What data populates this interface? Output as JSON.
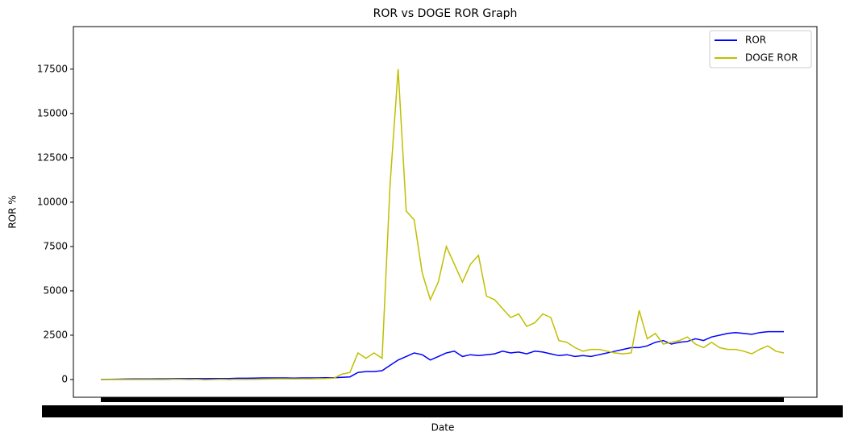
{
  "chart_data": {
    "type": "line",
    "title": "ROR vs DOGE ROR Graph",
    "x_label": "Date",
    "y_label": "ROR %",
    "categories": [
      null,
      null,
      null,
      null,
      null,
      null,
      null,
      null,
      null,
      null,
      null,
      null,
      null,
      null,
      null,
      null,
      null,
      null,
      null,
      null,
      null,
      null,
      null,
      null,
      null,
      null,
      null,
      null,
      null,
      null,
      null,
      null,
      null,
      null,
      null,
      null,
      null,
      null,
      null,
      null,
      null,
      null,
      null,
      null,
      null,
      null,
      null,
      null,
      null,
      null,
      null,
      null,
      null,
      null,
      null,
      null,
      null,
      null,
      null,
      null,
      null,
      null,
      null,
      null,
      null,
      null,
      null,
      null,
      null,
      null,
      null,
      null,
      null,
      null,
      null,
      null,
      null,
      null,
      null,
      null,
      null,
      null,
      null,
      null,
      null,
      null
    ],
    "series": [
      {
        "name": "ROR",
        "color": "#0000ff",
        "values": [
          0,
          10,
          20,
          25,
          30,
          30,
          35,
          40,
          40,
          45,
          50,
          50,
          55,
          50,
          60,
          60,
          60,
          70,
          70,
          80,
          90,
          90,
          90,
          90,
          80,
          90,
          90,
          90,
          100,
          100,
          120,
          150,
          400,
          450,
          450,
          500,
          800,
          1100,
          1300,
          1500,
          1400,
          1100,
          1300,
          1500,
          1600,
          1300,
          1400,
          1350,
          1400,
          1450,
          1600,
          1500,
          1550,
          1450,
          1600,
          1550,
          1450,
          1350,
          1400,
          1300,
          1350,
          1300,
          1400,
          1500,
          1600,
          1700,
          1800,
          1800,
          1900,
          2100,
          2200,
          2000,
          2100,
          2150,
          2300,
          2200,
          2400,
          2500,
          2600,
          2650,
          2600,
          2550,
          2650,
          2700,
          2700,
          2700
        ]
      },
      {
        "name": "DOGE ROR",
        "color": "#bfbf00",
        "values": [
          0,
          0,
          0,
          0,
          0,
          0,
          0,
          0,
          0,
          10,
          10,
          0,
          10,
          -20,
          0,
          10,
          0,
          10,
          0,
          10,
          20,
          30,
          40,
          40,
          30,
          40,
          40,
          50,
          60,
          80,
          300,
          400,
          1500,
          1200,
          1500,
          1200,
          11000,
          17500,
          9500,
          9000,
          6000,
          4500,
          5500,
          7500,
          6500,
          5500,
          6500,
          7000,
          4700,
          4500,
          4000,
          3500,
          3700,
          3000,
          3200,
          3700,
          3500,
          2200,
          2100,
          1800,
          1600,
          1700,
          1700,
          1600,
          1500,
          1450,
          1500,
          3900,
          2300,
          2600,
          2000,
          2100,
          2200,
          2400,
          2000,
          1800,
          2100,
          1800,
          1700,
          1700,
          1600,
          1450,
          1700,
          1900,
          1600,
          1500
        ]
      }
    ],
    "ylim": [
      -1000,
      19900
    ],
    "yticks": [
      0,
      2500,
      5000,
      7500,
      10000,
      12500,
      15000,
      17500
    ],
    "legend": "upper right"
  }
}
